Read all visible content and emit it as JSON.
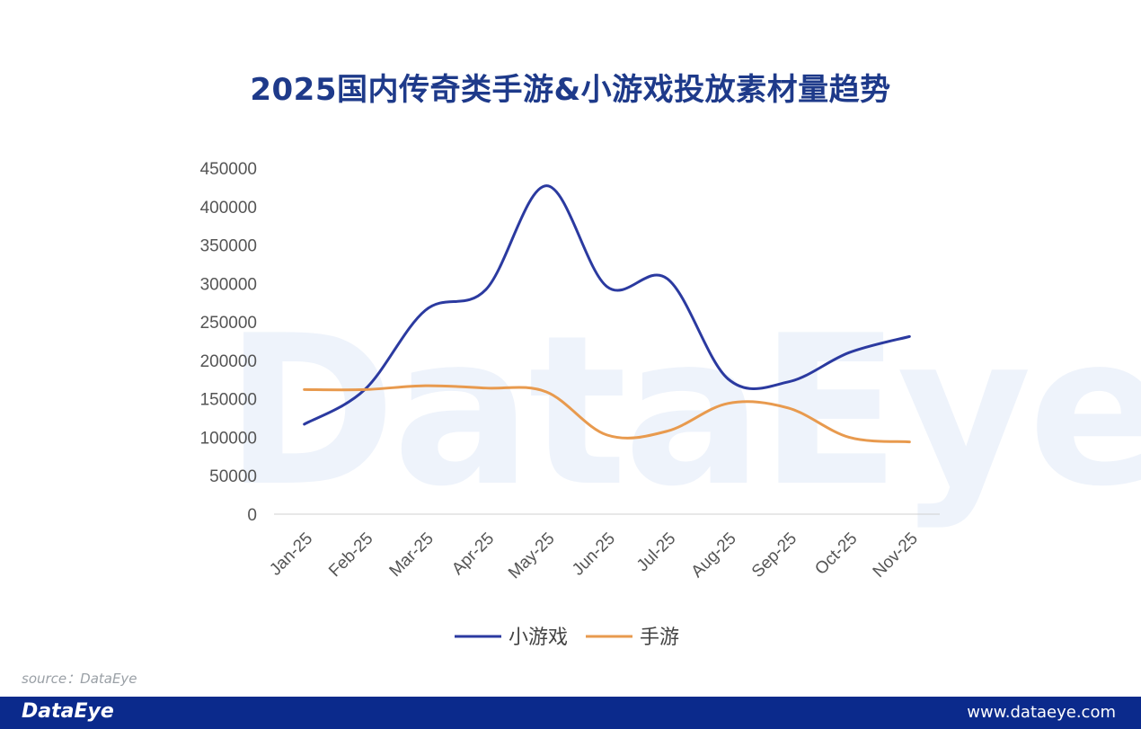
{
  "watermark": "DataEye",
  "source": "source：DataEye",
  "footer": {
    "logo": "DataEye",
    "url": "www.dataeye.com"
  },
  "chart_data": {
    "type": "line",
    "title": "2025国内传奇类手游&小游戏投放素材量趋势",
    "xlabel": "",
    "ylabel": "",
    "categories": [
      "Jan-25",
      "Feb-25",
      "Mar-25",
      "Apr-25",
      "May-25",
      "Jun-25",
      "Jul-25",
      "Aug-25",
      "Sep-25",
      "Oct-25",
      "Nov-25"
    ],
    "ylim": [
      0,
      450000
    ],
    "yticks": [
      0,
      50000,
      100000,
      150000,
      200000,
      250000,
      300000,
      350000,
      400000,
      450000
    ],
    "grid": false,
    "legend_position": "bottom",
    "series": [
      {
        "name": "小游戏",
        "color": "#2b3aa0",
        "values": [
          117000,
          162000,
          265000,
          292000,
          427000,
          296000,
          306000,
          176000,
          172000,
          210000,
          231000
        ]
      },
      {
        "name": "手游",
        "color": "#e89a4e",
        "values": [
          162000,
          162000,
          167000,
          164000,
          159000,
          103000,
          108000,
          144000,
          138000,
          100000,
          94000
        ]
      }
    ]
  }
}
